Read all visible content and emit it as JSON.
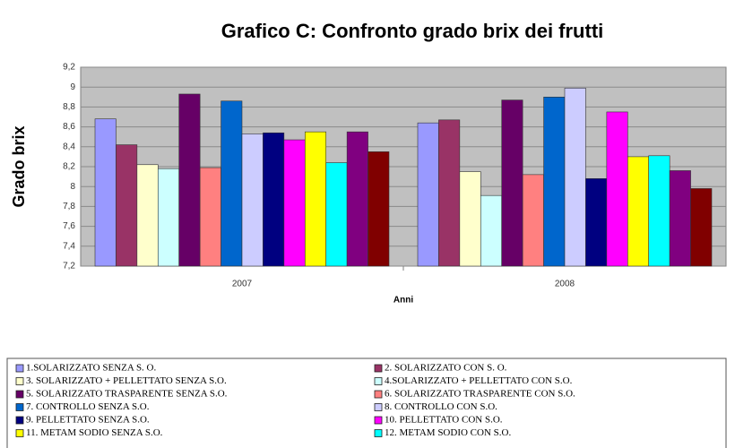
{
  "chart_data": {
    "type": "bar",
    "title": "Grafico C: Confronto grado brix dei frutti",
    "x_label": "Anni",
    "y_label": "Grado brix",
    "categories": [
      "2007",
      "2008"
    ],
    "ylim": [
      7.2,
      9.2
    ],
    "yticks": [
      {
        "value": 7.2,
        "label": "7,2"
      },
      {
        "value": 7.4,
        "label": "7,4"
      },
      {
        "value": 7.6,
        "label": "7,6"
      },
      {
        "value": 7.8,
        "label": "7,8"
      },
      8,
      {
        "value": 8.2,
        "label": "8,2"
      },
      {
        "value": 8.4,
        "label": "8,4"
      },
      {
        "value": 8.6,
        "label": "8,6"
      },
      {
        "value": 8.8,
        "label": "8,8"
      },
      9,
      {
        "value": 9.2,
        "label": "9,2"
      }
    ],
    "grid": true,
    "series": [
      {
        "name": "1.SOLARIZZATO SENZA S. O.",
        "color": "#9999ff",
        "values": [
          8.68,
          8.64
        ]
      },
      {
        "name": "2. SOLARIZZATO CON S. O.",
        "color": "#993366",
        "values": [
          8.42,
          8.67
        ]
      },
      {
        "name": "3. SOLARIZZATO + PELLETTATO SENZA S.O.",
        "color": "#ffffcc",
        "values": [
          8.22,
          8.15
        ]
      },
      {
        "name": "4.SOLARIZZATO + PELLETTATO CON S.O.",
        "color": "#ccffff",
        "values": [
          8.18,
          7.91
        ]
      },
      {
        "name": "5. SOLARIZZATO TRASPARENTE SENZA S.O.",
        "color": "#660066",
        "values": [
          8.93,
          8.87
        ]
      },
      {
        "name": "6. SOLARIZZATO TRASPARENTE CON S.O.",
        "color": "#ff8080",
        "values": [
          8.19,
          8.12
        ]
      },
      {
        "name": "7. CONTROLLO SENZA S.O.",
        "color": "#0066cc",
        "values": [
          8.86,
          8.9
        ]
      },
      {
        "name": "8. CONTROLLO CON S.O.",
        "color": "#ccccff",
        "values": [
          8.53,
          8.99
        ]
      },
      {
        "name": "9. PELLETTATO SENZA S.O.",
        "color": "#000080",
        "values": [
          8.54,
          8.08
        ]
      },
      {
        "name": "10. PELLETTATO CON S.O.",
        "color": "#ff00ff",
        "values": [
          8.47,
          8.75
        ]
      },
      {
        "name": "11. METAM SODIO SENZA S.O.",
        "color": "#ffff00",
        "values": [
          8.55,
          8.3
        ]
      },
      {
        "name": "12. METAM SODIO CON S.O.",
        "color": "#00ffff",
        "values": [
          8.24,
          8.31
        ]
      },
      {
        "color": "#800080",
        "values": [
          8.55,
          8.16
        ]
      },
      {
        "color": "#800000",
        "values": [
          8.35,
          7.98
        ]
      }
    ]
  }
}
